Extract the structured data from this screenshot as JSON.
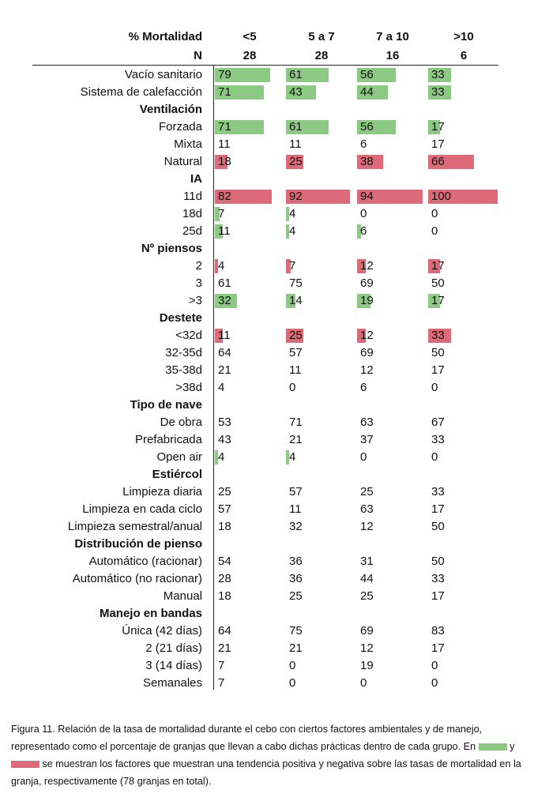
{
  "colors": {
    "positive": "#8cc982",
    "negative": "#dc6a78"
  },
  "header": {
    "mortality_label": "% Mortalidad",
    "n_label": "N",
    "groups": [
      {
        "range": "<5",
        "n": "28"
      },
      {
        "range": "5 a 7",
        "n": "28"
      },
      {
        "range": "7 a 10",
        "n": "16"
      },
      {
        "range": ">10",
        "n": "6"
      }
    ]
  },
  "rows": [
    {
      "label": "Vacío sanitario",
      "section": false,
      "values": [
        "79",
        "61",
        "56",
        "33"
      ],
      "highlight": [
        "pos",
        "pos",
        "pos",
        "pos"
      ]
    },
    {
      "label": "Sistema de calefacción",
      "section": false,
      "values": [
        "71",
        "43",
        "44",
        "33"
      ],
      "highlight": [
        "pos",
        "pos",
        "pos",
        "pos"
      ]
    },
    {
      "label": "Ventilación",
      "section": true
    },
    {
      "label": "Forzada",
      "section": false,
      "values": [
        "71",
        "61",
        "56",
        "17"
      ],
      "highlight": [
        "pos",
        "pos",
        "pos",
        "pos"
      ]
    },
    {
      "label": "Mixta",
      "section": false,
      "values": [
        "11",
        "11",
        "6",
        "17"
      ],
      "highlight": [
        "",
        "",
        "",
        ""
      ]
    },
    {
      "label": "Natural",
      "section": false,
      "values": [
        "18",
        "25",
        "38",
        "66"
      ],
      "highlight": [
        "neg",
        "neg",
        "neg",
        "neg"
      ]
    },
    {
      "label": "IA",
      "section": true
    },
    {
      "label": "11d",
      "section": false,
      "values": [
        "82",
        "92",
        "94",
        "100"
      ],
      "highlight": [
        "neg",
        "neg",
        "neg",
        "neg"
      ]
    },
    {
      "label": "18d",
      "section": false,
      "values": [
        "7",
        "4",
        "0",
        "0"
      ],
      "highlight": [
        "pos",
        "pos",
        "",
        ""
      ]
    },
    {
      "label": "25d",
      "section": false,
      "values": [
        "11",
        "4",
        "6",
        "0"
      ],
      "highlight": [
        "pos",
        "pos",
        "pos",
        ""
      ]
    },
    {
      "label": "Nº piensos",
      "section": true
    },
    {
      "label": "2",
      "section": false,
      "values": [
        "4",
        "7",
        "12",
        "17"
      ],
      "highlight": [
        "neg",
        "neg",
        "neg",
        "neg"
      ]
    },
    {
      "label": "3",
      "section": false,
      "values": [
        "61",
        "75",
        "69",
        "50"
      ],
      "highlight": [
        "",
        "",
        "",
        ""
      ]
    },
    {
      "label": ">3",
      "section": false,
      "values": [
        "32",
        "14",
        "19",
        "17"
      ],
      "highlight": [
        "pos",
        "pos",
        "pos",
        "pos"
      ]
    },
    {
      "label": "Destete",
      "section": true
    },
    {
      "label": "<32d",
      "section": false,
      "values": [
        "11",
        "25",
        "12",
        "33"
      ],
      "highlight": [
        "neg",
        "neg",
        "neg",
        "neg"
      ]
    },
    {
      "label": "32-35d",
      "section": false,
      "values": [
        "64",
        "57",
        "69",
        "50"
      ],
      "highlight": [
        "",
        "",
        "",
        ""
      ]
    },
    {
      "label": "35-38d",
      "section": false,
      "values": [
        "21",
        "11",
        "12",
        "17"
      ],
      "highlight": [
        "",
        "",
        "",
        ""
      ]
    },
    {
      "label": ">38d",
      "section": false,
      "values": [
        "4",
        "0",
        "6",
        "0"
      ],
      "highlight": [
        "",
        "",
        "",
        ""
      ]
    },
    {
      "label": "Tipo de nave",
      "section": true
    },
    {
      "label": "De obra",
      "section": false,
      "values": [
        "53",
        "71",
        "63",
        "67"
      ],
      "highlight": [
        "",
        "",
        "",
        ""
      ]
    },
    {
      "label": "Prefabricada",
      "section": false,
      "values": [
        "43",
        "21",
        "37",
        "33"
      ],
      "highlight": [
        "",
        "",
        "",
        ""
      ]
    },
    {
      "label": "Open air",
      "section": false,
      "values": [
        "4",
        "4",
        "0",
        "0"
      ],
      "highlight": [
        "pos",
        "pos",
        "",
        ""
      ]
    },
    {
      "label": "Estiércol",
      "section": true
    },
    {
      "label": "Limpieza diaria",
      "section": false,
      "values": [
        "25",
        "57",
        "25",
        "33"
      ],
      "highlight": [
        "",
        "",
        "",
        ""
      ]
    },
    {
      "label": "Limpieza en cada ciclo",
      "section": false,
      "values": [
        "57",
        "11",
        "63",
        "17"
      ],
      "highlight": [
        "",
        "",
        "",
        ""
      ]
    },
    {
      "label": "Limpieza semestral/anual",
      "section": false,
      "values": [
        "18",
        "32",
        "12",
        "50"
      ],
      "highlight": [
        "",
        "",
        "",
        ""
      ]
    },
    {
      "label": "Distribución de pienso",
      "section": true
    },
    {
      "label": "Automático (racionar)",
      "section": false,
      "values": [
        "54",
        "36",
        "31",
        "50"
      ],
      "highlight": [
        "",
        "",
        "",
        ""
      ]
    },
    {
      "label": "Automático (no racionar)",
      "section": false,
      "values": [
        "28",
        "36",
        "44",
        "33"
      ],
      "highlight": [
        "",
        "",
        "",
        ""
      ]
    },
    {
      "label": "Manual",
      "section": false,
      "values": [
        "18",
        "25",
        "25",
        "17"
      ],
      "highlight": [
        "",
        "",
        "",
        ""
      ]
    },
    {
      "label": "Manejo en bandas",
      "section": true
    },
    {
      "label": "Única (42 días)",
      "section": false,
      "values": [
        "64",
        "75",
        "69",
        "83"
      ],
      "highlight": [
        "",
        "",
        "",
        ""
      ]
    },
    {
      "label": "2 (21 días)",
      "section": false,
      "values": [
        "21",
        "21",
        "12",
        "17"
      ],
      "highlight": [
        "",
        "",
        "",
        ""
      ]
    },
    {
      "label": "3 (14 días)",
      "section": false,
      "values": [
        "7",
        "0",
        "19",
        "0"
      ],
      "highlight": [
        "",
        "",
        "",
        ""
      ]
    },
    {
      "label": "Semanales",
      "section": false,
      "values": [
        "7",
        "0",
        "0",
        "0"
      ],
      "highlight": [
        "",
        "",
        "",
        ""
      ]
    }
  ],
  "caption": {
    "part1": "Figura 11.  Relación de la tasa de mortalidad durante el cebo con ciertos factores ambientales y de manejo, representado como el porcentaje de granjas que llevan a cabo dichas prácticas dentro de cada grupo. En",
    "part2": "y",
    "part3": "se muestran los factores que muestran una tendencia positiva y negativa sobre las tasas de mortalidad en la granja, respectivamente (78 granjas en total)."
  }
}
